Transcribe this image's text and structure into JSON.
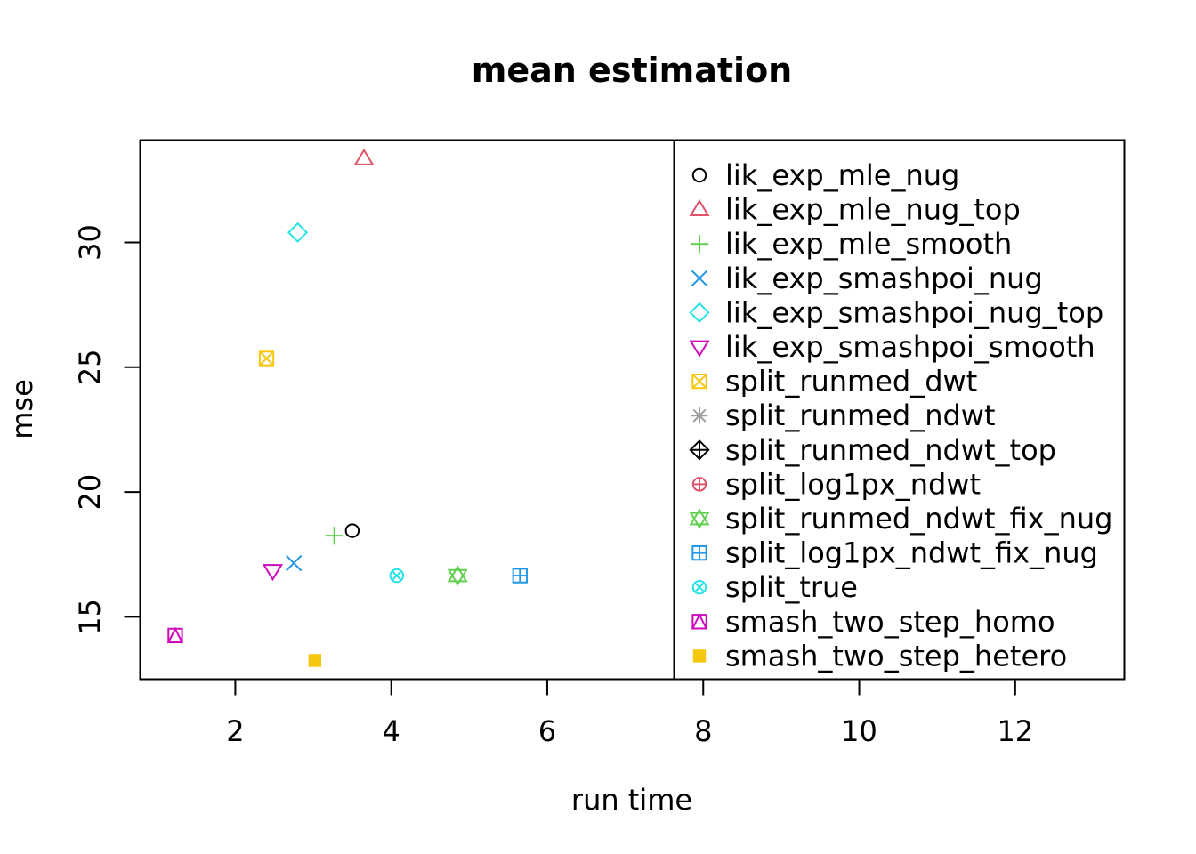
{
  "chart_data": {
    "type": "scatter",
    "title": "mean estimation",
    "xlabel": "run time",
    "ylabel": "mse",
    "xlim": [
      0.78,
      13.4
    ],
    "ylim": [
      12.5,
      34.1
    ],
    "x_ticks": [
      2,
      4,
      6,
      8,
      10,
      12
    ],
    "y_ticks": [
      15,
      20,
      25,
      30
    ],
    "legend_position": "right, inside plot, boxed",
    "series": [
      {
        "name": "lik_exp_mle_nug",
        "x": 3.5,
        "y": 18.45,
        "marker": "circle",
        "color": "#000000"
      },
      {
        "name": "lik_exp_mle_nug_top",
        "x": 3.65,
        "y": 33.35,
        "marker": "triangle",
        "color": "#DF536B"
      },
      {
        "name": "lik_exp_mle_smooth",
        "x": 3.27,
        "y": 18.25,
        "marker": "plus",
        "color": "#61D04F"
      },
      {
        "name": "lik_exp_smashpoi_nug",
        "x": 2.75,
        "y": 17.15,
        "marker": "cross",
        "color": "#2297E6"
      },
      {
        "name": "lik_exp_smashpoi_nug_top",
        "x": 2.8,
        "y": 30.4,
        "marker": "diamond",
        "color": "#28E2E5"
      },
      {
        "name": "lik_exp_smashpoi_smooth",
        "x": 2.48,
        "y": 16.85,
        "marker": "triangle-down",
        "color": "#CD0BBC"
      },
      {
        "name": "split_runmed_dwt",
        "x": 2.4,
        "y": 25.35,
        "marker": "square-x",
        "color": "#F5C710"
      },
      {
        "name": "split_runmed_ndwt",
        "x": null,
        "y": null,
        "marker": "asterisk",
        "color": "#9E9E9E"
      },
      {
        "name": "split_runmed_ndwt_top",
        "x": null,
        "y": null,
        "marker": "diamond-plus",
        "color": "#000000"
      },
      {
        "name": "split_log1px_ndwt",
        "x": null,
        "y": null,
        "marker": "circle-plus",
        "color": "#DF536B"
      },
      {
        "name": "split_runmed_ndwt_fix_nug",
        "x": 4.85,
        "y": 16.65,
        "marker": "star-of-david",
        "color": "#61D04F"
      },
      {
        "name": "split_log1px_ndwt_fix_nug",
        "x": 5.65,
        "y": 16.65,
        "marker": "square-plus",
        "color": "#2297E6"
      },
      {
        "name": "split_true",
        "x": 4.07,
        "y": 16.65,
        "marker": "circle-x",
        "color": "#28E2E5"
      },
      {
        "name": "smash_two_step_homo",
        "x": 1.23,
        "y": 14.25,
        "marker": "square-triangle",
        "color": "#CD0BBC"
      },
      {
        "name": "smash_two_step_hetero",
        "x": 3.02,
        "y": 13.25,
        "marker": "filled-square",
        "color": "#F5C710"
      }
    ]
  }
}
